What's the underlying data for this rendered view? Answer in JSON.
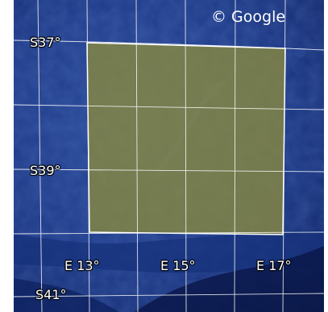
{
  "map": {
    "imagery": "satellite ocean bathymetry",
    "copyright": "© Google",
    "latitude_labels": [
      "S37°",
      "S39°",
      "S41°"
    ],
    "longitude_labels": [
      "E 13°",
      "E 15°",
      "E 17°"
    ],
    "highlight_color": "#8a8a3c",
    "grid_color": "#ffffff",
    "ocean_color": "#1c3a8a"
  }
}
